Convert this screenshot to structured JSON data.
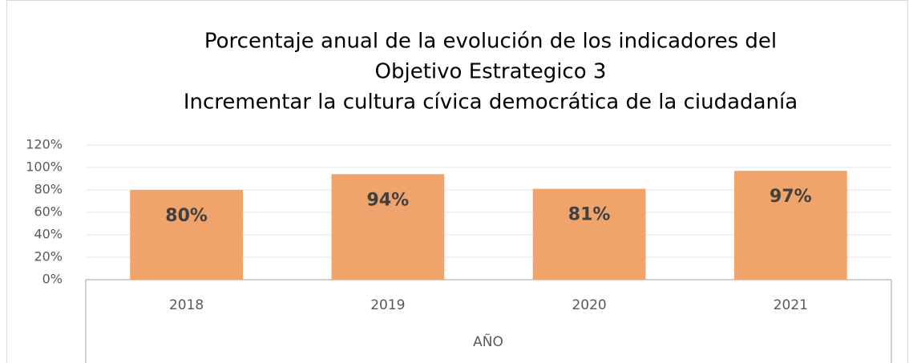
{
  "chart_data": {
    "type": "bar",
    "title": [
      "Porcentaje anual de la evolución de los indicadores del",
      "Objetivo Estrategico 3",
      "Incrementar la cultura cívica democrática de la ciudadanía"
    ],
    "x_label": "AÑO",
    "categories": [
      "2018",
      "2019",
      "2020",
      "2021"
    ],
    "values": [
      80,
      94,
      81,
      97
    ],
    "value_labels": [
      "80%",
      "94%",
      "81%",
      "97%"
    ],
    "color": "#f1a36c",
    "ylim": [
      0,
      120
    ],
    "yticks": [
      {
        "value": 0,
        "label": "0%"
      },
      {
        "value": 20,
        "label": "20%"
      },
      {
        "value": 40,
        "label": "40%"
      },
      {
        "value": 60,
        "label": "60%"
      },
      {
        "value": 80,
        "label": "80%"
      },
      {
        "value": 100,
        "label": "100%"
      },
      {
        "value": 120,
        "label": "120%"
      }
    ],
    "grid": true
  }
}
